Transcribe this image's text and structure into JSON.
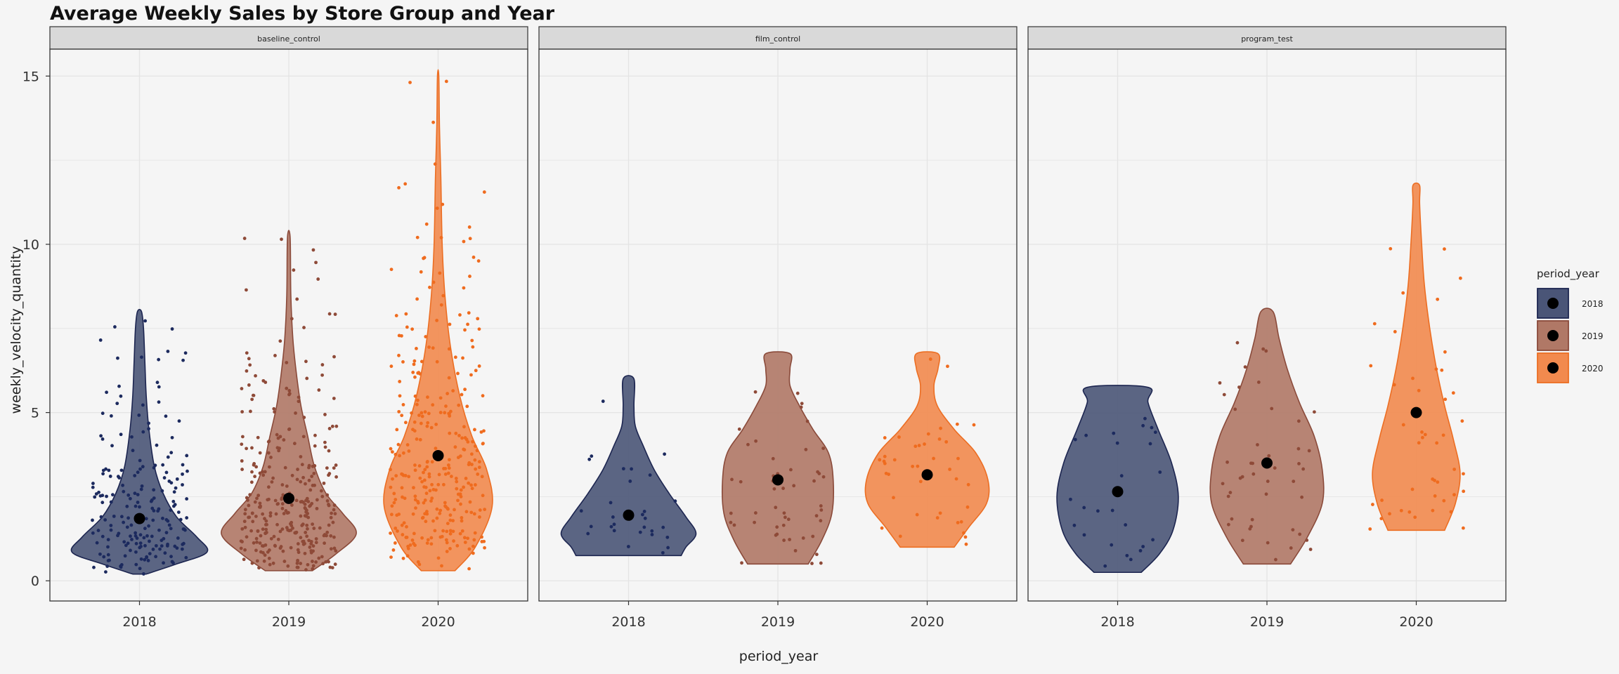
{
  "chart_data": {
    "type": "violin",
    "title": "Average Weekly Sales by Store Group and Year",
    "xlabel": "period_year",
    "ylabel": "weekly_velocity_quantity",
    "ylim": [
      -0.6,
      15.8
    ],
    "yticks": [
      0,
      5,
      10,
      15
    ],
    "grid": true,
    "categories": [
      "2018",
      "2019",
      "2020"
    ],
    "legend": {
      "title": "period_year",
      "placement": "right",
      "entries": [
        "2018",
        "2019",
        "2020"
      ]
    },
    "colors": {
      "2018": "#4a5577",
      "2019": "#b07866",
      "2020": "#f28a4e"
    },
    "outline_colors": {
      "2018": "#1c2550",
      "2019": "#8a4a3a",
      "2020": "#ec6e23"
    },
    "point_colors": {
      "2018": "#1c2a5e",
      "2019": "#8e4a38",
      "2020": "#ef6b1e"
    },
    "facets": [
      {
        "name": "baseline_control",
        "groups": [
          {
            "year": "2018",
            "min": 0.2,
            "max": 8.0,
            "mean": 1.85,
            "n_points": 200,
            "profile": [
              [
                0.2,
                0.1
              ],
              [
                0.5,
                0.55
              ],
              [
                0.85,
                1.0
              ],
              [
                1.3,
                0.85
              ],
              [
                1.9,
                0.55
              ],
              [
                2.6,
                0.35
              ],
              [
                3.4,
                0.22
              ],
              [
                4.5,
                0.14
              ],
              [
                5.5,
                0.1
              ],
              [
                6.5,
                0.08
              ],
              [
                7.5,
                0.06
              ],
              [
                8.0,
                0.03
              ]
            ]
          },
          {
            "year": "2019",
            "min": 0.3,
            "max": 10.2,
            "mean": 2.45,
            "n_points": 320,
            "profile": [
              [
                0.3,
                0.35
              ],
              [
                0.8,
                0.7
              ],
              [
                1.4,
                1.0
              ],
              [
                2.0,
                0.8
              ],
              [
                2.6,
                0.55
              ],
              [
                3.4,
                0.38
              ],
              [
                4.3,
                0.28
              ],
              [
                5.2,
                0.18
              ],
              [
                6.2,
                0.11
              ],
              [
                7.2,
                0.06
              ],
              [
                8.5,
                0.03
              ],
              [
                10.2,
                0.02
              ]
            ]
          },
          {
            "year": "2020",
            "min": 0.3,
            "max": 15.0,
            "mean": 3.72,
            "n_points": 320,
            "profile": [
              [
                0.3,
                0.25
              ],
              [
                1.0,
                0.55
              ],
              [
                2.2,
                0.8
              ],
              [
                3.3,
                0.72
              ],
              [
                4.3,
                0.5
              ],
              [
                5.5,
                0.32
              ],
              [
                7.0,
                0.18
              ],
              [
                8.5,
                0.1
              ],
              [
                10.0,
                0.06
              ],
              [
                12.0,
                0.04
              ],
              [
                13.5,
                0.02
              ],
              [
                15.0,
                0.01
              ]
            ]
          }
        ]
      },
      {
        "name": "film_control",
        "groups": [
          {
            "year": "2018",
            "min": 0.75,
            "max": 6.0,
            "mean": 1.95,
            "n_points": 30,
            "profile": [
              [
                0.75,
                0.78
              ],
              [
                1.0,
                0.85
              ],
              [
                1.4,
                1.0
              ],
              [
                1.9,
                0.85
              ],
              [
                2.6,
                0.6
              ],
              [
                3.3,
                0.38
              ],
              [
                4.0,
                0.22
              ],
              [
                4.6,
                0.1
              ],
              [
                5.2,
                0.08
              ],
              [
                6.0,
                0.08
              ]
            ]
          },
          {
            "year": "2019",
            "min": 0.5,
            "max": 6.75,
            "mean": 3.0,
            "n_points": 50,
            "profile": [
              [
                0.5,
                0.45
              ],
              [
                1.2,
                0.65
              ],
              [
                2.0,
                0.8
              ],
              [
                3.0,
                0.82
              ],
              [
                3.8,
                0.75
              ],
              [
                4.5,
                0.52
              ],
              [
                5.2,
                0.32
              ],
              [
                5.8,
                0.18
              ],
              [
                6.3,
                0.18
              ],
              [
                6.75,
                0.18
              ]
            ]
          },
          {
            "year": "2020",
            "min": 1.0,
            "max": 6.75,
            "mean": 3.15,
            "n_points": 40,
            "profile": [
              [
                1.0,
                0.4
              ],
              [
                1.6,
                0.62
              ],
              [
                2.3,
                0.88
              ],
              [
                3.0,
                0.9
              ],
              [
                3.8,
                0.72
              ],
              [
                4.5,
                0.4
              ],
              [
                5.2,
                0.15
              ],
              [
                5.8,
                0.1
              ],
              [
                6.3,
                0.16
              ],
              [
                6.75,
                0.16
              ]
            ]
          }
        ]
      },
      {
        "name": "program_test",
        "groups": [
          {
            "year": "2018",
            "min": 0.25,
            "max": 5.75,
            "mean": 2.65,
            "n_points": 25,
            "profile": [
              [
                0.25,
                0.35
              ],
              [
                0.8,
                0.62
              ],
              [
                1.5,
                0.82
              ],
              [
                2.5,
                0.9
              ],
              [
                3.5,
                0.8
              ],
              [
                4.5,
                0.6
              ],
              [
                5.3,
                0.45
              ],
              [
                5.75,
                0.45
              ]
            ]
          },
          {
            "year": "2019",
            "min": 0.5,
            "max": 8.0,
            "mean": 3.5,
            "n_points": 45,
            "profile": [
              [
                0.5,
                0.35
              ],
              [
                1.3,
                0.6
              ],
              [
                2.3,
                0.82
              ],
              [
                3.3,
                0.82
              ],
              [
                4.3,
                0.7
              ],
              [
                5.3,
                0.48
              ],
              [
                6.3,
                0.3
              ],
              [
                7.2,
                0.18
              ],
              [
                8.0,
                0.09
              ]
            ]
          },
          {
            "year": "2020",
            "min": 1.5,
            "max": 11.75,
            "mean": 5.0,
            "n_points": 45,
            "profile": [
              [
                1.5,
                0.42
              ],
              [
                2.3,
                0.58
              ],
              [
                3.2,
                0.65
              ],
              [
                4.2,
                0.55
              ],
              [
                5.2,
                0.42
              ],
              [
                6.3,
                0.3
              ],
              [
                7.5,
                0.2
              ],
              [
                8.8,
                0.12
              ],
              [
                10.0,
                0.08
              ],
              [
                11.2,
                0.05
              ],
              [
                11.75,
                0.05
              ]
            ]
          }
        ]
      }
    ]
  }
}
